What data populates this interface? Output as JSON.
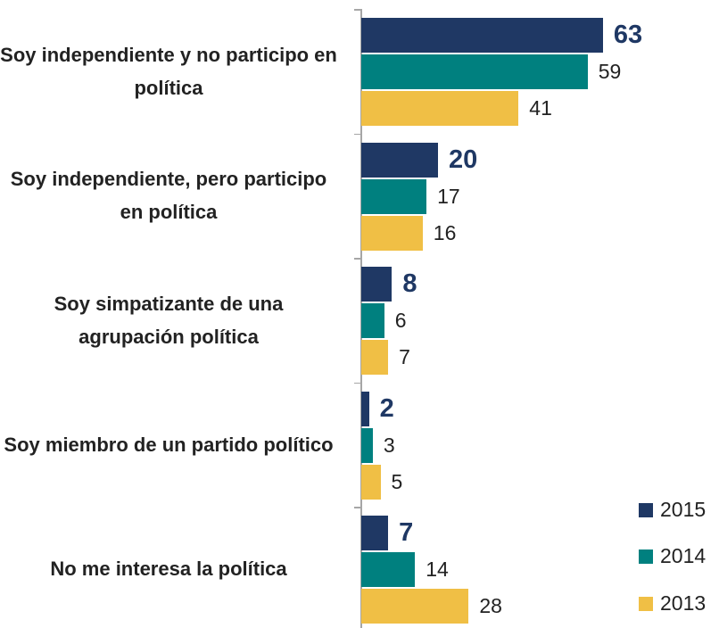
{
  "chart_data": {
    "type": "barh",
    "categories": [
      "Soy independiente y no participo en política",
      "Soy independiente, pero participo en política",
      "Soy simpatizante de una agrupación política",
      "Soy miembro de un partido político",
      "No me interesa la política"
    ],
    "series": [
      {
        "name": "2015",
        "color": "#1f3864",
        "values": [
          63,
          20,
          8,
          2,
          7
        ]
      },
      {
        "name": "2014",
        "color": "#00807f",
        "values": [
          59,
          17,
          6,
          3,
          14
        ]
      },
      {
        "name": "2013",
        "color": "#f0bf45",
        "values": [
          41,
          16,
          7,
          5,
          28
        ]
      }
    ],
    "legend": "lower right"
  }
}
